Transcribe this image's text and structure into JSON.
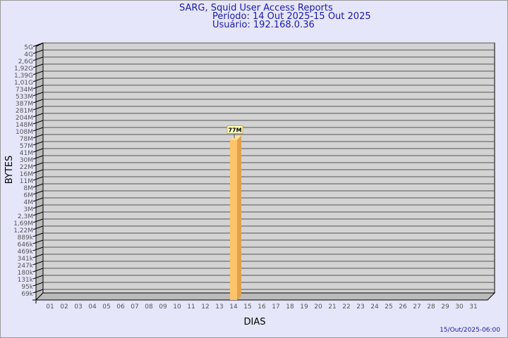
{
  "header": {
    "title": "SARG, Squid User Access Reports",
    "period": "Período: 14 Out 2025-15 Out 2025",
    "user": "Usuário: 192.168.0.36"
  },
  "footer": {
    "timestamp": "15/Out/2025-06:00"
  },
  "chart_data": {
    "type": "bar",
    "xlabel": "DIAS",
    "ylabel": "BYTES",
    "scale": "log",
    "grid": true,
    "y_ticks": [
      "69k",
      "95k",
      "131k",
      "180k",
      "247k",
      "341k",
      "469k",
      "646k",
      "889k",
      "1,22M",
      "1,69M",
      "2,3M",
      "3M",
      "4M",
      "6M",
      "8M",
      "11M",
      "16M",
      "22M",
      "30M",
      "41M",
      "57M",
      "78M",
      "108M",
      "148M",
      "204M",
      "281M",
      "387M",
      "533M",
      "734M",
      "1,01G",
      "1,39G",
      "1,92G",
      "2,6G",
      "4G",
      "5G"
    ],
    "categories": [
      "01",
      "02",
      "03",
      "04",
      "05",
      "06",
      "07",
      "08",
      "09",
      "10",
      "11",
      "12",
      "13",
      "14",
      "15",
      "16",
      "17",
      "18",
      "19",
      "20",
      "21",
      "22",
      "23",
      "24",
      "25",
      "26",
      "27",
      "28",
      "29",
      "30",
      "31"
    ],
    "bars": [
      {
        "category": "14",
        "value": 77000000,
        "label": "77M"
      }
    ],
    "colors": {
      "bar_front": "#ffc46b",
      "bar_side": "#e0a24a",
      "bar_top": "#ffe09a",
      "plot_bg": "#d3d3d3",
      "text": "#1a1aa6"
    }
  }
}
